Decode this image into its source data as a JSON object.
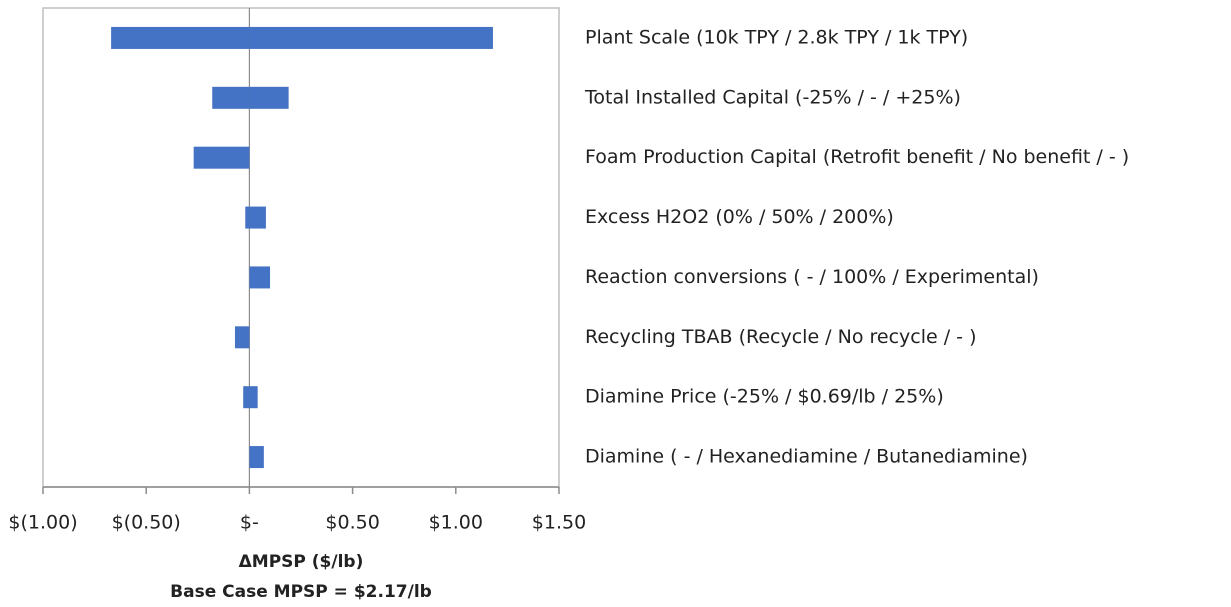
{
  "chart_data": {
    "type": "tornado",
    "categories": [
      "Plant Scale (10k TPY / 2.8k TPY / 1k TPY)",
      "Total Installed Capital (-25% /  -  / +25%)",
      "Foam Production Capital (Retrofit benefit / No benefit /  - )",
      "Excess H2O2 (0% / 50% / 200%)",
      "Reaction conversions ( -  / 100% / Experimental)",
      "Recycling TBAB (Recycle / No recycle /  - )",
      "Diamine Price (-25% / $0.69/lb / 25%)",
      "Diamine ( -  / Hexanediamine / Butanediamine)"
    ],
    "series": [
      {
        "color": "#4472c4",
        "values": [
          -0.67,
          -0.18,
          -0.27,
          -0.02,
          0,
          -0.07,
          -0.03,
          0
        ]
      },
      {
        "color": "#4472c4",
        "values": [
          1.18,
          0.19,
          0,
          0.08,
          0.1,
          0,
          0.04,
          0.07
        ]
      }
    ],
    "xlim": [
      -1,
      1.5
    ],
    "xticks": [
      {
        "value": -1,
        "label": "$(1.00)"
      },
      {
        "value": -0.5,
        "label": "$(0.50)"
      },
      {
        "value": 0,
        "label": "$-"
      },
      {
        "value": 0.5,
        "label": "$0.50"
      },
      {
        "value": 1,
        "label": "$1.00"
      },
      {
        "value": 1.5,
        "label": "$1.50"
      }
    ],
    "xlabel": [
      "ΔMPSP ($/lb)",
      "Base Case MPSP = $2.17/lb"
    ]
  }
}
